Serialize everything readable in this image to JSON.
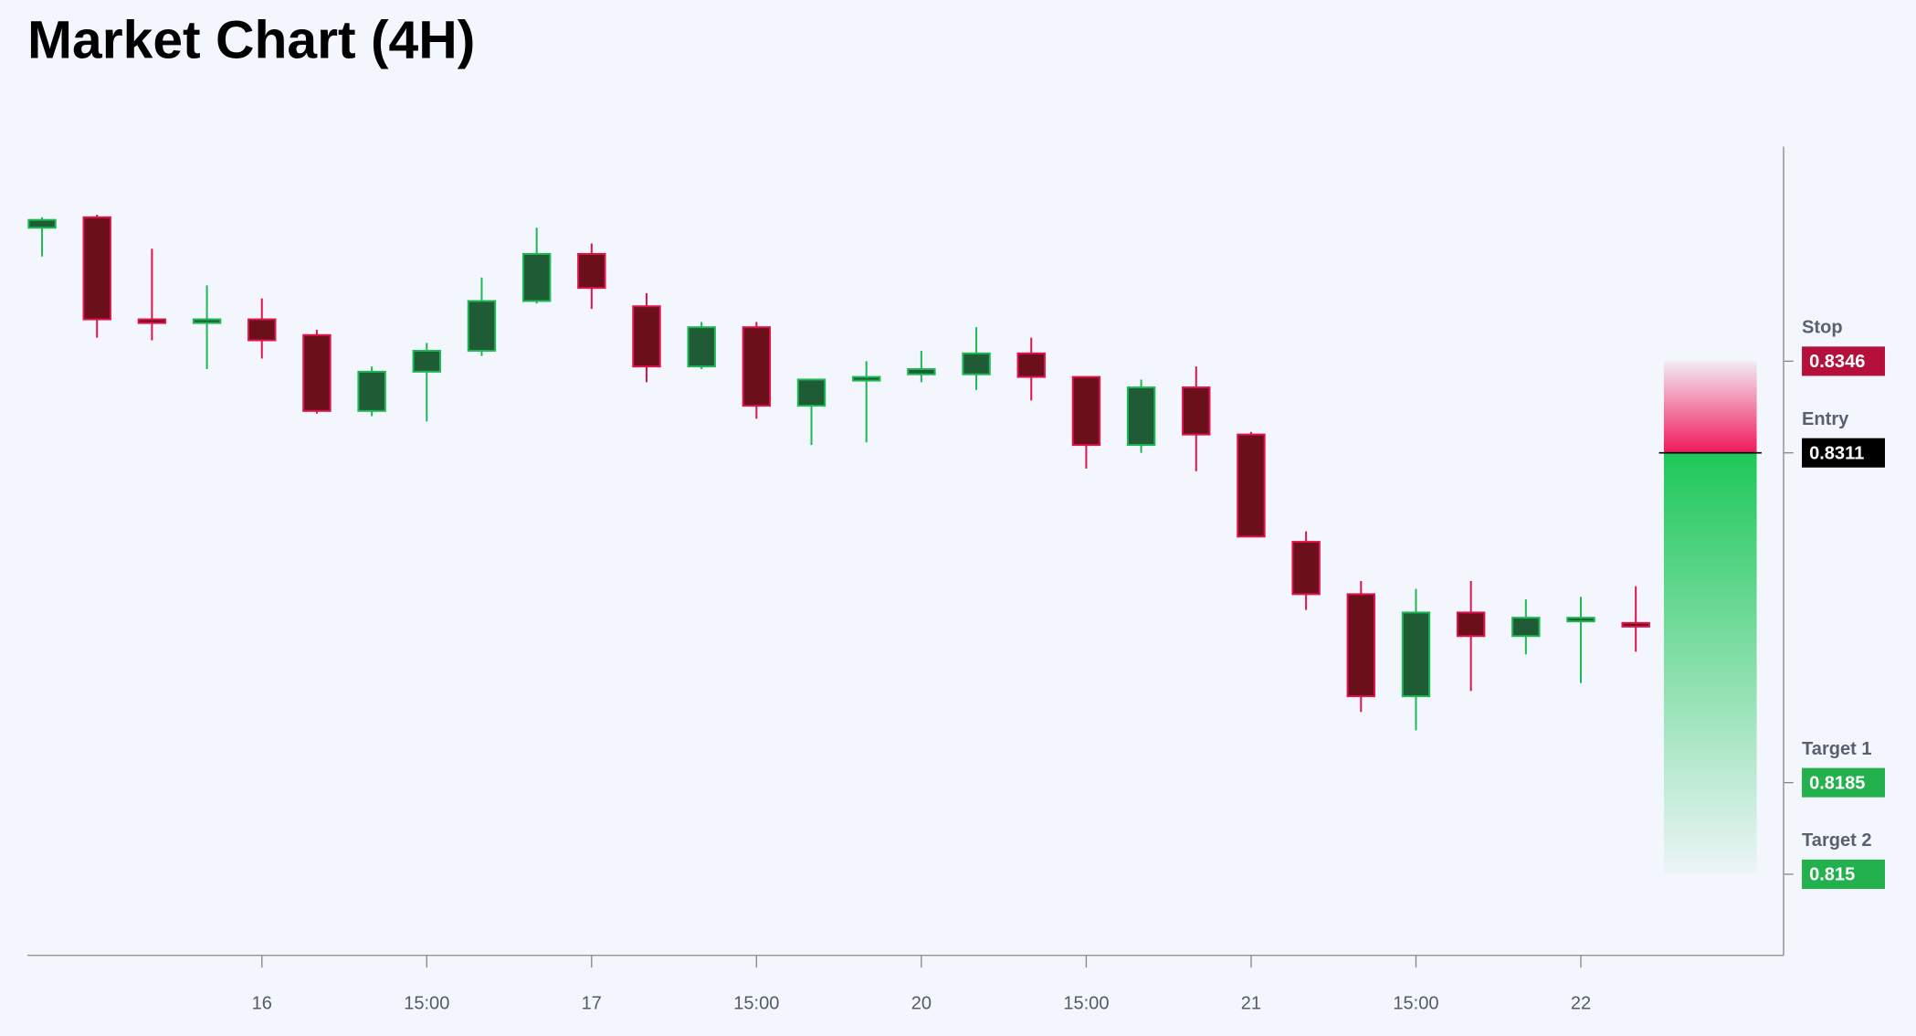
{
  "chart_data": {
    "type": "candlestick",
    "title": "Market Chart (4H)",
    "categories": [
      null,
      null,
      null,
      null,
      "16",
      null,
      null,
      "15:00",
      null,
      null,
      "17",
      null,
      null,
      "15:00",
      null,
      null,
      "20",
      null,
      null,
      "15:00",
      null,
      null,
      "21",
      null,
      null,
      "15:00",
      null,
      null,
      "22",
      null
    ],
    "open": [
      0.8397,
      0.8401,
      0.8362,
      0.8361,
      0.8362,
      0.8356,
      0.8327,
      0.8342,
      0.835,
      0.8369,
      0.8387,
      0.8367,
      0.8344,
      0.8359,
      0.8329,
      0.8339,
      0.8341,
      0.8341,
      0.8349,
      0.834,
      0.8314,
      0.8336,
      0.8318,
      0.8277,
      0.8257,
      0.8218,
      0.825,
      0.8241,
      0.8247,
      0.8246
    ],
    "high": [
      0.8401,
      0.8402,
      0.8389,
      0.8375,
      0.837,
      0.8358,
      0.8344,
      0.8353,
      0.8378,
      0.8397,
      0.8391,
      0.8372,
      0.8361,
      0.8361,
      0.8339,
      0.8346,
      0.835,
      0.8359,
      0.8355,
      0.834,
      0.8339,
      0.8344,
      0.8319,
      0.8281,
      0.8262,
      0.8259,
      0.8262,
      0.8255,
      0.8256,
      0.826
    ],
    "low": [
      0.8386,
      0.8355,
      0.8354,
      0.8343,
      0.8347,
      0.8326,
      0.8325,
      0.8323,
      0.8348,
      0.8368,
      0.8366,
      0.8338,
      0.8343,
      0.8324,
      0.8314,
      0.8315,
      0.8338,
      0.8335,
      0.8331,
      0.8305,
      0.8311,
      0.8304,
      0.8279,
      0.8251,
      0.8212,
      0.8205,
      0.822,
      0.8234,
      0.8223,
      0.8235
    ],
    "close": [
      0.84,
      0.8362,
      0.8361,
      0.8362,
      0.8354,
      0.8327,
      0.8342,
      0.835,
      0.8369,
      0.8387,
      0.8374,
      0.8344,
      0.8359,
      0.8329,
      0.8339,
      0.834,
      0.8343,
      0.8349,
      0.834,
      0.8314,
      0.8336,
      0.8318,
      0.8279,
      0.8257,
      0.8218,
      0.825,
      0.8241,
      0.8248,
      0.8248,
      0.8245
    ],
    "ylim": [
      0.8119,
      0.8428
    ],
    "up_color": "#1db954",
    "up_fill": "#1f5c36",
    "down_color": "#e0144c",
    "down_fill": "#6b0f1a",
    "levels": [
      {
        "name": "Stop",
        "value": 0.8346,
        "color": "#b5103c"
      },
      {
        "name": "Entry",
        "value": 0.8311,
        "color": "#000000"
      },
      {
        "name": "Target 1",
        "value": 0.8185,
        "color": "#22b14c"
      },
      {
        "name": "Target 2",
        "value": 0.815,
        "color": "#22b14c"
      }
    ]
  }
}
